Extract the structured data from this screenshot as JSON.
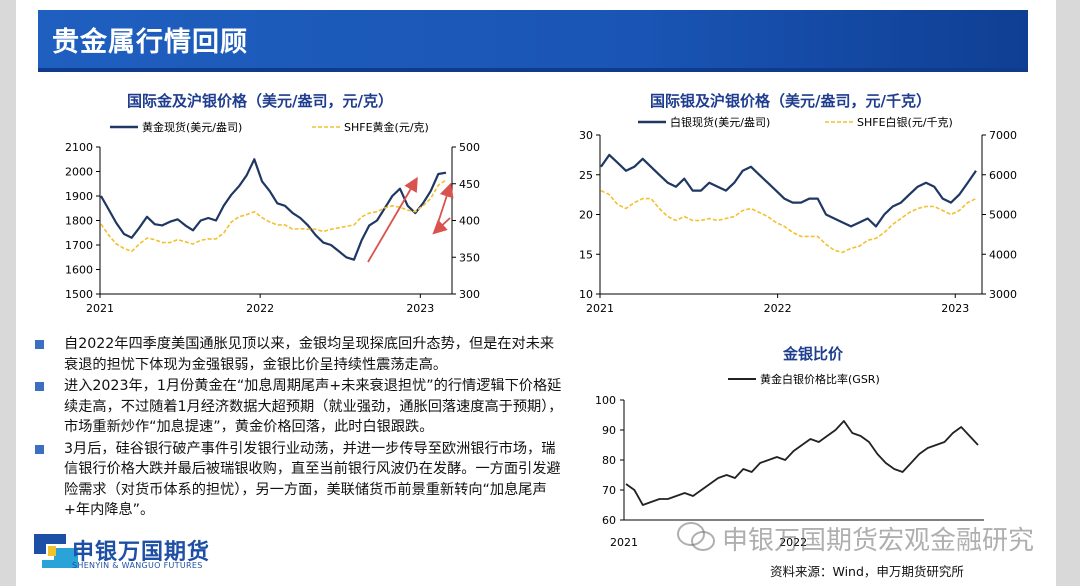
{
  "header": {
    "title": "贵金属行情回顾"
  },
  "colors": {
    "banner": "#1a55b5",
    "series_navy": "#1f3763",
    "series_gold": "#f2c12e",
    "arrow": "#d9534f"
  },
  "chart_data": [
    {
      "type": "line",
      "title": "国际金及沪银价格（美元/盎司，元/克）",
      "x_ticks": [
        "2021",
        "2022",
        "2023"
      ],
      "ylim_left": [
        1500,
        2100
      ],
      "yticks_left": [
        "2100",
        "2000",
        "1900",
        "1800",
        "1700",
        "1600",
        "1500"
      ],
      "ylim_right": [
        300,
        500
      ],
      "yticks_right": [
        "500",
        "450",
        "400",
        "350",
        "300"
      ],
      "series": [
        {
          "name": "黄金现货(美元/盎司)",
          "axis": "left",
          "style": "solid",
          "values": [
            1900,
            1845,
            1790,
            1745,
            1730,
            1770,
            1815,
            1785,
            1780,
            1795,
            1805,
            1780,
            1760,
            1800,
            1810,
            1800,
            1860,
            1905,
            1940,
            1985,
            2050,
            1960,
            1920,
            1870,
            1860,
            1830,
            1810,
            1780,
            1740,
            1710,
            1700,
            1675,
            1650,
            1640,
            1720,
            1780,
            1800,
            1850,
            1900,
            1930,
            1860,
            1830,
            1870,
            1920,
            1990,
            1995
          ]
        },
        {
          "name": "SHFE黄金(元/克)",
          "axis": "right",
          "style": "dashed",
          "values": [
            395,
            380,
            368,
            362,
            358,
            368,
            376,
            374,
            370,
            370,
            374,
            371,
            368,
            373,
            375,
            375,
            383,
            398,
            405,
            408,
            412,
            404,
            398,
            394,
            394,
            388,
            389,
            388,
            388,
            385,
            388,
            390,
            392,
            394,
            405,
            410,
            412,
            417,
            420,
            418,
            414,
            412,
            420,
            430,
            448,
            455
          ]
        }
      ],
      "annotations": [
        {
          "type": "arrow",
          "direction": "up"
        },
        {
          "type": "arrow",
          "direction": "down"
        },
        {
          "type": "arrow",
          "direction": "up"
        }
      ]
    },
    {
      "type": "line",
      "title": "国际银及沪银价格（美元/盎司，元/千克）",
      "x_ticks": [
        "2021",
        "2022",
        "2023"
      ],
      "ylim_left": [
        10,
        30
      ],
      "yticks_left": [
        "30",
        "25",
        "20",
        "15",
        "10"
      ],
      "ylim_right": [
        3000,
        7000
      ],
      "yticks_right": [
        "7000",
        "6000",
        "5000",
        "4000",
        "3000"
      ],
      "series": [
        {
          "name": "白银现货(美元/盎司)",
          "axis": "left",
          "style": "solid",
          "values": [
            26,
            27.5,
            26.5,
            25.5,
            26,
            27,
            26,
            25,
            24,
            23.5,
            24.5,
            23,
            23,
            24,
            23.5,
            23,
            24,
            25.5,
            26,
            25,
            24,
            23,
            22,
            21.5,
            21.5,
            22,
            22,
            20,
            19.5,
            19,
            18.5,
            19,
            19.5,
            18.5,
            20,
            21,
            21.5,
            22.5,
            23.5,
            24,
            23.5,
            22,
            21.5,
            22.5,
            24,
            25.5
          ]
        },
        {
          "name": "SHFE白银(元/千克)",
          "axis": "right",
          "style": "dashed",
          "values": [
            5600,
            5500,
            5250,
            5150,
            5300,
            5400,
            5400,
            5150,
            4950,
            4850,
            4950,
            4850,
            4850,
            4900,
            4850,
            4900,
            4950,
            5100,
            5150,
            5050,
            4950,
            4800,
            4700,
            4550,
            4450,
            4450,
            4450,
            4250,
            4100,
            4050,
            4150,
            4200,
            4350,
            4400,
            4550,
            4750,
            4900,
            5050,
            5150,
            5200,
            5200,
            5100,
            5000,
            5100,
            5300,
            5400
          ]
        }
      ]
    },
    {
      "type": "line",
      "title": "金银比价",
      "x_ticks": [
        "2021",
        "2022"
      ],
      "ylim": [
        60,
        100
      ],
      "yticks": [
        "100",
        "90",
        "80",
        "70",
        "60"
      ],
      "series": [
        {
          "name": "黄金白银价格比率(GSR)",
          "style": "solid",
          "values": [
            72,
            70,
            65,
            66,
            67,
            67,
            68,
            69,
            68,
            70,
            72,
            74,
            75,
            74,
            77,
            76,
            79,
            80,
            81,
            80,
            83,
            85,
            87,
            86,
            88,
            90,
            93,
            89,
            88,
            86,
            82,
            79,
            77,
            76,
            79,
            82,
            84,
            85,
            86,
            89,
            91,
            88,
            85
          ]
        }
      ]
    }
  ],
  "bullets": [
    "自2022年四季度美国通胀见顶以来，金银均呈现探底回升态势，但是在对未来衰退的担忧下体现为金强银弱，金银比价呈持续性震荡走高。",
    "进入2023年，1月份黄金在“加息周期尾声+未来衰退担忧”的行情逻辑下价格延续走高，不过随着1月经济数据大超预期（就业强劲，通胀回落速度高于预期），市场重新炒作“加息提速”，黄金价格回落，此时白银跟跌。",
    "3月后，硅谷银行破产事件引发银行业动荡，并进一步传导至欧洲银行市场，瑞信银行价格大跌并最后被瑞银收购，直至当前银行风波仍在发酵。一方面引发避险需求（对货币体系的担忧），另一方面，美联储货币前景重新转向“加息尾声+年内降息”。"
  ],
  "footer": {
    "logo_cn": "申银万国期货",
    "logo_en": "SHENYIN & WANGUO FUTURES",
    "source": "资料来源：Wind，申万期货研究所",
    "watermark": "申银万国期货宏观金融研究"
  }
}
